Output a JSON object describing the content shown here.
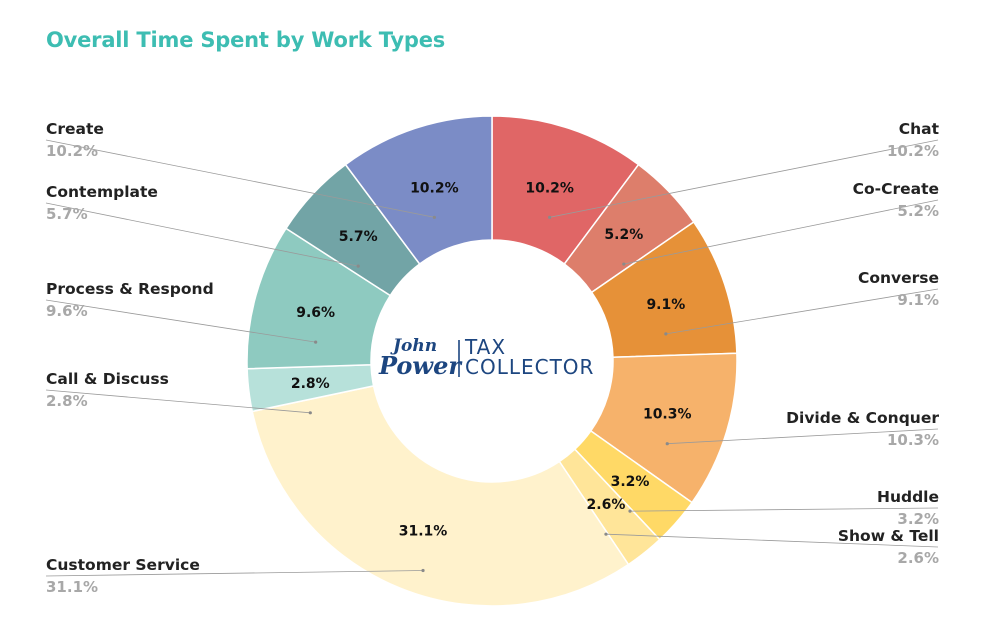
{
  "chart_data": {
    "type": "pie",
    "title": "Overall Time Spent by Work Types",
    "donut": true,
    "center_logo": {
      "line1": "John",
      "line2": "Power",
      "text_top": "TAX",
      "text_bottom": "COLLECTOR"
    },
    "slices": [
      {
        "label": "Chat",
        "value": 10.2,
        "display": "10.2%",
        "color": "#e06666"
      },
      {
        "label": "Co-Create",
        "value": 5.2,
        "display": "5.2%",
        "color": "#dd7e6b"
      },
      {
        "label": "Converse",
        "value": 9.1,
        "display": "9.1%",
        "color": "#e69138"
      },
      {
        "label": "Divide & Conquer",
        "value": 10.3,
        "display": "10.3%",
        "color": "#f6b26b"
      },
      {
        "label": "Huddle",
        "value": 3.2,
        "display": "3.2%",
        "color": "#ffd966"
      },
      {
        "label": "Show & Tell",
        "value": 2.6,
        "display": "2.6%",
        "color": "#ffe599"
      },
      {
        "label": "Customer Service",
        "value": 31.1,
        "display": "31.1%",
        "color": "#fff2cc"
      },
      {
        "label": "Call & Discuss",
        "value": 2.8,
        "display": "2.8%",
        "color": "#b7e1da"
      },
      {
        "label": "Process & Respond",
        "value": 9.6,
        "display": "9.6%",
        "color": "#8ecac0"
      },
      {
        "label": "Contemplate",
        "value": 5.7,
        "display": "5.7%",
        "color": "#72a4a6"
      },
      {
        "label": "Create",
        "value": 10.2,
        "display": "10.2%",
        "color": "#7b8cc6"
      }
    ]
  }
}
